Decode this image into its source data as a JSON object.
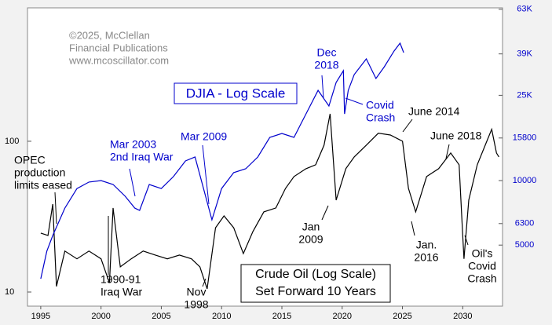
{
  "chart_data": {
    "type": "line",
    "xlim": [
      1993.9,
      2033.3
    ],
    "xticks": [
      1995,
      2000,
      2005,
      2010,
      2015,
      2020,
      2025,
      2030
    ],
    "ylim": [
      8.06,
      767
    ],
    "yticks": [
      10,
      100
    ],
    "log_y": true,
    "y2lim": [
      2594,
      63970
    ],
    "y2ticks": [
      {
        "value": 63000,
        "label": "63K"
      },
      {
        "value": 39000,
        "label": "39K"
      },
      {
        "value": 25000,
        "label": "25K"
      },
      15800,
      10000,
      6300,
      5000
    ],
    "log_y2": true,
    "y2_color": "#0000cc",
    "series": [
      {
        "color": "#000000",
        "axis": "y",
        "x": [
          1995.0,
          1995.6,
          1996.0,
          1996.3,
          1997.0,
          1998.0,
          1999.0,
          2000.0,
          2000.7,
          2001.0,
          2001.6,
          2002.5,
          2003.5,
          2004.5,
          2005.5,
          2006.5,
          2007.5,
          2008.2,
          2008.8,
          2009.5,
          2010.2,
          2011.0,
          2011.8,
          2012.6,
          2013.5,
          2014.5,
          2015.3,
          2016.0,
          2017.0,
          2017.8,
          2018.5,
          2019.0,
          2019.5,
          2020.3,
          2021.0,
          2022.0,
          2023.0,
          2024.0,
          2025.0,
          2025.5,
          2026.1,
          2027.0,
          2028.0,
          2029.0,
          2029.7,
          2030.0,
          2030.1,
          2030.5,
          2031.2,
          2032.0,
          2032.4,
          2032.8,
          2033.0
        ],
        "values": [
          24.6,
          23.7,
          38.3,
          10.9,
          18.7,
          16.6,
          18.7,
          16.6,
          11.5,
          36.1,
          14.7,
          16.6,
          18.7,
          17.6,
          16.6,
          17.6,
          16.6,
          14.7,
          10.5,
          26.7,
          32.0,
          26.7,
          18.0,
          25.2,
          34.0,
          36.1,
          48.7,
          58.3,
          65.8,
          69.8,
          94.2,
          152,
          40.7,
          65.8,
          78.7,
          94.2,
          113,
          110,
          100,
          48.7,
          34.0,
          58.3,
          65.8,
          83.6,
          69.8,
          23.7,
          16.6,
          40.7,
          69.8,
          100,
          120,
          83.6,
          78.7
        ]
      },
      {
        "color": "#0000cc",
        "axis": "y2",
        "x": [
          1995.0,
          1995.5,
          1996.0,
          1997.0,
          1998.0,
          1999.0,
          2000.0,
          2001.0,
          2002.0,
          2002.8,
          2003.2,
          2004.0,
          2005.0,
          2006.0,
          2007.0,
          2007.8,
          2008.5,
          2009.2,
          2010.0,
          2011.0,
          2012.0,
          2013.0,
          2014.0,
          2015.0,
          2016.0,
          2017.0,
          2018.0,
          2018.9,
          2019.5,
          2020.1,
          2020.2,
          2020.5,
          2021.0,
          2022.0,
          2022.8,
          2023.5,
          2024.3,
          2024.8,
          2025.1
        ],
        "values": [
          3483,
          4677,
          5540,
          7440,
          9180,
          9840,
          10000,
          9590,
          8450,
          7440,
          7260,
          9590,
          9180,
          10430,
          12350,
          12880,
          9180,
          6560,
          9180,
          10890,
          11350,
          12880,
          15900,
          16590,
          15900,
          20470,
          26360,
          22280,
          28710,
          32580,
          20470,
          26360,
          31230,
          36980,
          29940,
          33970,
          40180,
          43750,
          39540
        ]
      }
    ],
    "copyright": [
      "©2025, McClellan",
      "Financial Publications",
      "www.mcoscillator.com"
    ],
    "djia_label": "DJIA - Log Scale",
    "oil_label": [
      "Crude Oil (Log Scale)",
      "Set Forward 10 Years"
    ],
    "annotations": [
      {
        "lines": [
          "OPEC",
          "production",
          "limits eased"
        ],
        "color": "#000000"
      },
      {
        "lines": [
          "Mar 2003",
          "2nd Iraq War"
        ],
        "color": "#0000cc"
      },
      {
        "lines": [
          "Mar 2009"
        ],
        "color": "#0000cc"
      },
      {
        "lines": [
          "1990-91",
          "Iraq War"
        ],
        "color": "#000000"
      },
      {
        "lines": [
          "Nov",
          "1998"
        ],
        "color": "#000000"
      },
      {
        "lines": [
          "Jan",
          "2009"
        ],
        "color": "#000000"
      },
      {
        "lines": [
          "Dec",
          "2018"
        ],
        "color": "#0000cc"
      },
      {
        "lines": [
          "Covid",
          "Crash"
        ],
        "color": "#0000cc"
      },
      {
        "lines": [
          "June 2014"
        ],
        "color": "#000000"
      },
      {
        "lines": [
          "June 2018"
        ],
        "color": "#000000"
      },
      {
        "lines": [
          "Jan.",
          "2016"
        ],
        "color": "#000000"
      },
      {
        "lines": [
          "Oil's",
          "Covid",
          "Crash"
        ],
        "color": "#000000"
      }
    ]
  }
}
